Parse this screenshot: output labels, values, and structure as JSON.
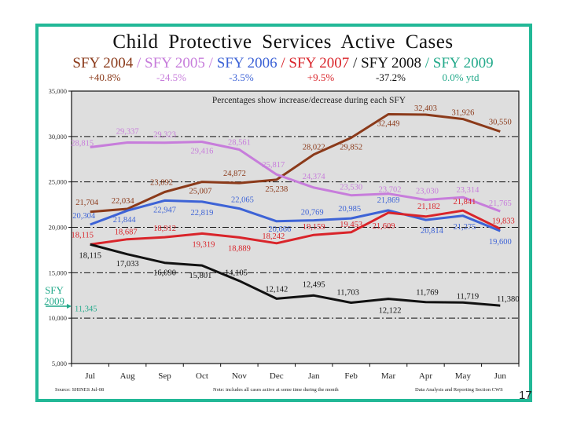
{
  "page_number": "17",
  "title": "Child Protective Services Active Cases",
  "legend": [
    {
      "label": "SFY 2004",
      "color": "#8b3a1a",
      "pct": "+40.8%"
    },
    {
      "label": "SFY 2005",
      "color": "#c77ddb",
      "pct": "-24.5%"
    },
    {
      "label": "SFY 2006",
      "color": "#3d63d6",
      "pct": "-3.5%"
    },
    {
      "label": "SFY 2007",
      "color": "#d9242a",
      "pct": "+9.5%"
    },
    {
      "label": "SFY 2008",
      "color": "#111111",
      "pct": "-37.2%"
    },
    {
      "label": "SFY 2009",
      "color": "#22a98a",
      "pct": "0.0% ytd"
    }
  ],
  "legend_separator": " / ",
  "footer": {
    "source": "Source: SHINES   Jul-08",
    "note": "Note: includes all cases active at some time during the month",
    "section": "Data Analysis and Reporting Section CWS"
  },
  "callout": {
    "line1": "SFY",
    "line2": "2009",
    "value": "11,345"
  },
  "chart_data": {
    "type": "line",
    "title": "Child Protective Services Active Cases",
    "annotation": "Percentages show increase/decrease during each SFY",
    "xlabel": "",
    "ylabel": "",
    "ylim": [
      5000,
      35000
    ],
    "yticks": [
      5000,
      10000,
      15000,
      20000,
      25000,
      30000,
      35000
    ],
    "ytick_labels": [
      "5,000",
      "10,000",
      "15,000",
      "20,000",
      "25,000",
      "30,000",
      "35,000"
    ],
    "grid": "dash-dot horizontal at 10,000 to 30,000",
    "categories": [
      "Jul",
      "Aug",
      "Sep",
      "Oct",
      "Nov",
      "Dec",
      "Jan",
      "Feb",
      "Mar",
      "Apr",
      "May",
      "Jun"
    ],
    "series": [
      {
        "name": "SFY 2004",
        "color": "#8b3a1a",
        "values": [
          21704,
          22034,
          23892,
          25007,
          24872,
          25238,
          28022,
          29852,
          32449,
          32403,
          31926,
          30550
        ]
      },
      {
        "name": "SFY 2005",
        "color": "#c77ddb",
        "values": [
          28815,
          29337,
          29323,
          29416,
          28561,
          25817,
          24374,
          23530,
          23702,
          23030,
          23314,
          21765
        ]
      },
      {
        "name": "SFY 2006",
        "color": "#3d63d6",
        "values": [
          20304,
          21844,
          22947,
          22819,
          22065,
          20666,
          20769,
          20985,
          21869,
          20814,
          21275,
          19600
        ]
      },
      {
        "name": "SFY 2007",
        "color": "#d9242a",
        "values": [
          18115,
          18687,
          18912,
          19319,
          18889,
          18242,
          19159,
          19453,
          21609,
          21182,
          21841,
          19833
        ]
      },
      {
        "name": "SFY 2008",
        "color": "#111111",
        "values": [
          18115,
          17033,
          16090,
          15801,
          14105,
          12142,
          12495,
          11703,
          12122,
          11769,
          11719,
          11380
        ]
      },
      {
        "name": "SFY 2009",
        "color": "#22a98a",
        "values": [
          11345
        ]
      }
    ],
    "legend": "top (title line)"
  }
}
